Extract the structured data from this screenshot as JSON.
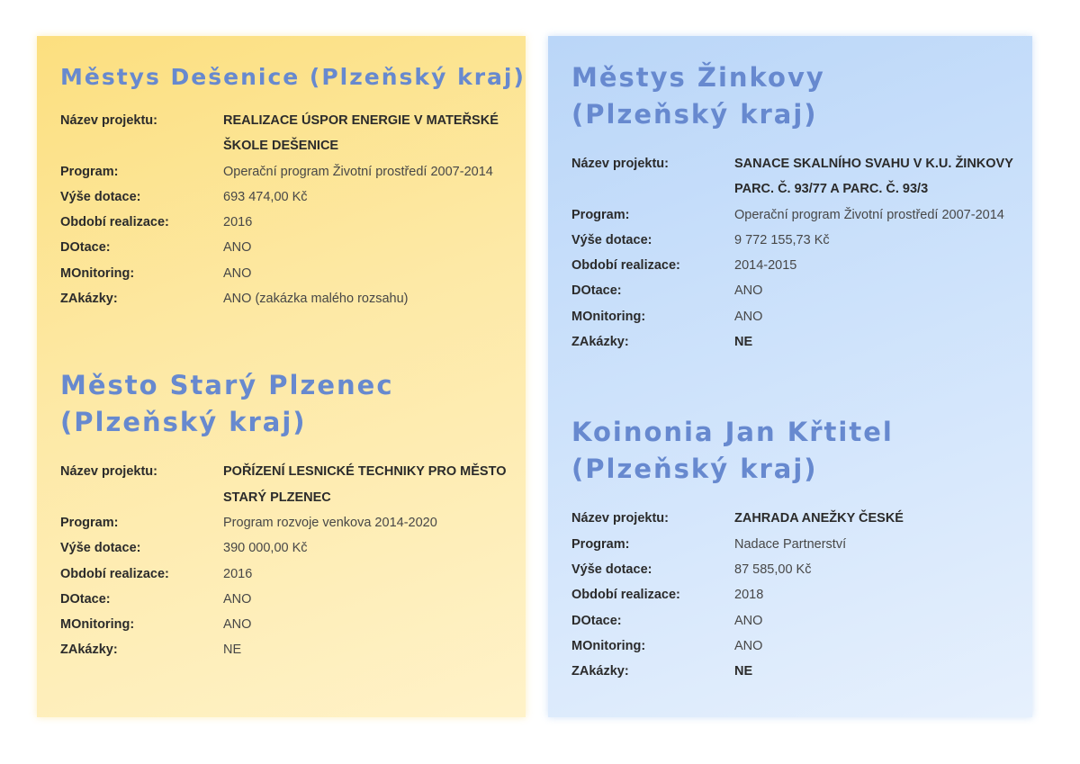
{
  "colors": {
    "title": "#6789cf",
    "left_panel": "#fde9a6",
    "right_panel": "#cde2fb"
  },
  "labels": {
    "project": "Název projektu:",
    "program": "Program:",
    "amount": "Výše dotace:",
    "period": "Období realizace:",
    "dotace": "DOtace:",
    "monitoring": "MOnitoring:",
    "zakazky": "ZAkázky:"
  },
  "entries": [
    {
      "title": "Městys Dešenice (Plzeňský kraj)",
      "project": "REALIZACE ÚSPOR ENERGIE V MATEŘSKÉ ŠKOLE DEŠENICE",
      "program": "Operační program Životní prostředí 2007-2014",
      "amount": "693 474,00 Kč",
      "period": "2016",
      "dotace": "ANO",
      "monitoring": "ANO",
      "zakazky": "ANO (zakázka malého rozsahu)"
    },
    {
      "title": "Město Starý Plzenec (Plzeňský kraj)",
      "project": "POŘÍZENÍ LESNICKÉ TECHNIKY PRO MĚSTO STARÝ PLZENEC",
      "program": "Program rozvoje venkova 2014-2020",
      "amount": "390 000,00 Kč",
      "period": "2016",
      "dotace": "ANO",
      "monitoring": "ANO",
      "zakazky": "NE"
    },
    {
      "title": "Městys Žinkovy (Plzeňský kraj)",
      "project": "SANACE SKALNÍHO SVAHU V K.U. ŽINKOVY PARC. Č. 93/77 A PARC. Č. 93/3",
      "program": "Operační program Životní prostředí 2007-2014",
      "amount": "9 772 155,73 Kč",
      "period": "2014-2015",
      "dotace": "ANO",
      "monitoring": "ANO",
      "zakazky": "NE"
    },
    {
      "title": "Koinonia Jan Křtitel (Plzeňský kraj)",
      "project": "ZAHRADA ANEŽKY ČESKÉ",
      "program": "Nadace Partnerství",
      "amount": "87 585,00 Kč",
      "period": "2018",
      "dotace": "ANO",
      "monitoring": "ANO",
      "zakazky": "NE"
    }
  ]
}
